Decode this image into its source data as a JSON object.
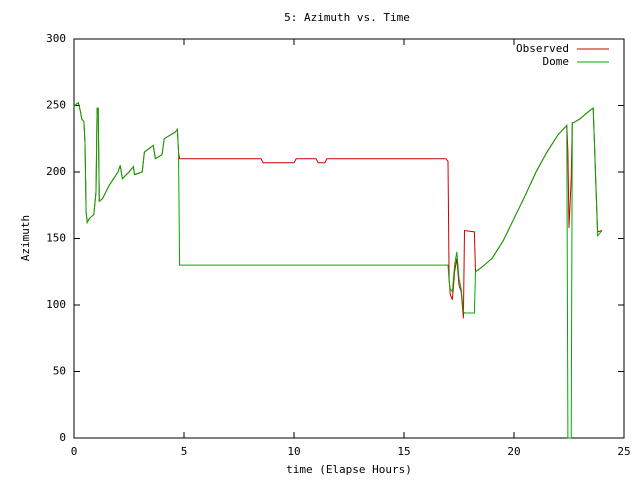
{
  "chart_data": {
    "type": "line",
    "title": "5: Azimuth vs. Time",
    "xlabel": "time (Elapse Hours)",
    "ylabel": "Azimuth",
    "xlim": [
      0,
      25
    ],
    "xticks": [
      0,
      5,
      10,
      15,
      20,
      25
    ],
    "ylim": [
      0,
      300
    ],
    "yticks": [
      0,
      50,
      100,
      150,
      200,
      250,
      300
    ],
    "legend": "top-right",
    "x": [
      0,
      0.1,
      0.2,
      0.3,
      0.35,
      0.45,
      0.5,
      0.55,
      0.6,
      0.7,
      0.9,
      1.0,
      1.05,
      1.1,
      1.15,
      1.3,
      1.6,
      2.0,
      2.1,
      2.2,
      2.5,
      2.7,
      2.75,
      3.1,
      3.2,
      3.6,
      3.7,
      4.0,
      4.1,
      4.6,
      4.7,
      4.75,
      4.8,
      8.5,
      8.6,
      10.0,
      10.1,
      11.0,
      11.1,
      11.4,
      11.5,
      16.9,
      17.0,
      17.05,
      17.1,
      17.2,
      17.3,
      17.4,
      17.5,
      17.6,
      17.7,
      17.75,
      18.2,
      18.25,
      18.5,
      19,
      19.5,
      20,
      20.5,
      21,
      21.5,
      22,
      22.4,
      22.45,
      22.5,
      22.6,
      22.65,
      22.7,
      23,
      23.5,
      23.6,
      23.8,
      24
    ],
    "series": [
      {
        "name": "Observed",
        "color": "#cc0000",
        "values": [
          249,
          251,
          252,
          245,
          240,
          238,
          222,
          170,
          162,
          165,
          168,
          185,
          248,
          248,
          178,
          180,
          190,
          200,
          205,
          195,
          200,
          204,
          198,
          200,
          215,
          220,
          210,
          213,
          225,
          230,
          232,
          215,
          210,
          210,
          207,
          207,
          210,
          210,
          207,
          207,
          210,
          210,
          208,
          120,
          108,
          104,
          125,
          135,
          115,
          110,
          90,
          156,
          155,
          125,
          128,
          135,
          148,
          165,
          182,
          200,
          215,
          228,
          235,
          215,
          158,
          195,
          237,
          237,
          240,
          247,
          248,
          155,
          156
        ]
      },
      {
        "name": "Dome",
        "color": "#00aa00",
        "values": [
          249,
          251,
          252,
          245,
          240,
          238,
          222,
          170,
          162,
          165,
          168,
          185,
          248,
          248,
          178,
          180,
          190,
          200,
          205,
          195,
          200,
          204,
          198,
          200,
          215,
          220,
          210,
          213,
          225,
          230,
          232,
          215,
          130,
          130,
          130,
          130,
          130,
          130,
          130,
          130,
          130,
          130,
          130,
          118,
          112,
          110,
          130,
          140,
          120,
          112,
          95,
          94,
          94,
          125,
          128,
          135,
          148,
          165,
          182,
          200,
          215,
          228,
          235,
          0,
          0,
          0,
          237,
          237,
          240,
          247,
          248,
          152,
          156
        ]
      }
    ]
  }
}
